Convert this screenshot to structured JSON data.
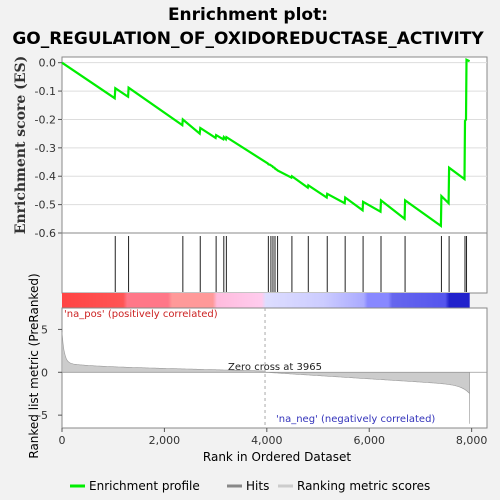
{
  "chart_data": {
    "type": "line",
    "title_line1": "Enrichment plot:",
    "title_line2": "GO_REGULATION_OF_OXIDOREDUCTASE_ACTIVITY",
    "es_panel": {
      "ylabel": "Enrichment score (ES)",
      "ylim": [
        -0.6,
        0.02
      ],
      "yticks": [
        "0.0",
        "-0.1",
        "-0.2",
        "-0.3",
        "-0.4",
        "-0.5",
        "-0.6"
      ],
      "ytick_values": [
        0.0,
        -0.1,
        -0.2,
        -0.3,
        -0.4,
        -0.5,
        -0.6
      ],
      "series_name": "Enrichment profile",
      "color": "#00ee00",
      "x": [
        0,
        1030,
        1040,
        1290,
        1300,
        2350,
        2360,
        2690,
        2700,
        3000,
        3010,
        3150,
        3160,
        3200,
        3210,
        4020,
        4030,
        4070,
        4080,
        4110,
        4120,
        4150,
        4160,
        4200,
        4210,
        4480,
        4490,
        4800,
        4810,
        5170,
        5180,
        5520,
        5530,
        5870,
        5880,
        6220,
        6230,
        6690,
        6700,
        7400,
        7410,
        7550,
        7560,
        7860,
        7870,
        7890,
        7900,
        7960
      ],
      "y": [
        0.0,
        -0.125,
        -0.09,
        -0.12,
        -0.088,
        -0.22,
        -0.2,
        -0.25,
        -0.23,
        -0.265,
        -0.255,
        -0.27,
        -0.262,
        -0.27,
        -0.262,
        -0.355,
        -0.358,
        -0.36,
        -0.362,
        -0.365,
        -0.368,
        -0.37,
        -0.373,
        -0.378,
        -0.38,
        -0.405,
        -0.4,
        -0.44,
        -0.432,
        -0.475,
        -0.462,
        -0.495,
        -0.475,
        -0.52,
        -0.49,
        -0.525,
        -0.485,
        -0.55,
        -0.485,
        -0.575,
        -0.47,
        -0.495,
        -0.37,
        -0.41,
        -0.205,
        -0.2,
        0.01,
        0.005
      ]
    },
    "hits": {
      "x": [
        1040,
        1300,
        2360,
        2700,
        3010,
        3160,
        3210,
        4030,
        4080,
        4120,
        4160,
        4210,
        4490,
        4810,
        5180,
        5530,
        5880,
        6230,
        6700,
        7410,
        7560,
        7870,
        7900
      ]
    },
    "ranked_panel": {
      "ylabel": "Ranked list metric (PreRanked)",
      "ylim": [
        -6.5,
        7.5
      ],
      "yticks": [
        "5",
        "0",
        "-5"
      ],
      "ytick_values": [
        5,
        0,
        -5
      ],
      "zero_cross_label": "Zero cross at 3965",
      "zero_cross": 3965,
      "pos_label": "'na_pos' (positively correlated)",
      "neg_label": "'na_neg' (negatively correlated)"
    },
    "xaxis": {
      "xlabel": "Rank in Ordered Dataset",
      "xlim": [
        0,
        8300
      ],
      "n_genes": 7963,
      "xticks": [
        "0",
        "2,000",
        "4,000",
        "6,000",
        "8,000"
      ],
      "xtick_values": [
        0,
        2000,
        4000,
        6000,
        8000
      ]
    },
    "legend": {
      "placement": "bottom",
      "items": [
        "Enrichment profile",
        "Hits",
        "Ranking metric scores"
      ]
    }
  }
}
